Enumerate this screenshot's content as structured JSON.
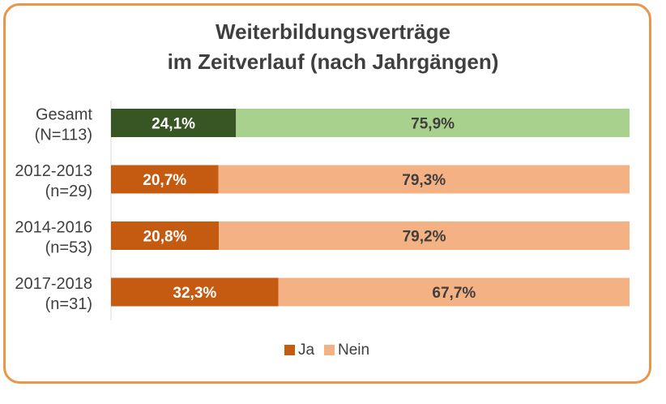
{
  "chart_data": {
    "type": "bar",
    "orientation": "horizontal",
    "stacked": "percent",
    "title_lines": [
      "Weiterbildungsverträge",
      "im Zeitverlauf (nach Jahrgängen)"
    ],
    "categories": [
      [
        "Gesamt",
        "(N=113)"
      ],
      [
        "2012-2013",
        "(n=29)"
      ],
      [
        "2014-2016",
        "(n=53)"
      ],
      [
        "2017-2018",
        "(n=31)"
      ]
    ],
    "series": [
      {
        "name": "Ja",
        "values": [
          24.1,
          20.7,
          20.8,
          32.3
        ],
        "labels": [
          "24,1%",
          "20,7%",
          "20,8%",
          "32,3%"
        ]
      },
      {
        "name": "Nein",
        "values": [
          75.9,
          79.3,
          79.2,
          67.7
        ],
        "labels": [
          "75,9%",
          "79,3%",
          "79,2%",
          "67,7%"
        ]
      }
    ],
    "colors": {
      "ja": "#c55a11",
      "nein": "#f4b183",
      "ja_total": "#375623",
      "nein_total": "#a9d18e",
      "label_light": "#ffffff",
      "label_dark": "#3f3f3f",
      "axis": "#d9d9d9"
    },
    "xlim": [
      0,
      100
    ],
    "legend_position": "bottom",
    "grid": false
  }
}
